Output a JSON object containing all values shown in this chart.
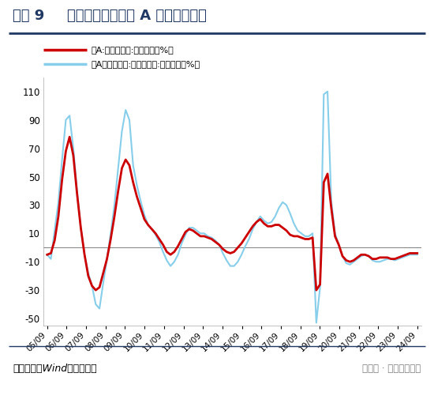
{
  "title_prefix": "图表 9",
  "title_main": "经历三年下行，全 A 业绩或已触底",
  "source_text": "资料来源：Wind，华创证券",
  "watermark_text": "公众号 · 姚佩策略探索",
  "legend1": "全A:归母净利润:累计同比（%）",
  "legend2": "全A（非金融）:归母净利润:累计同比（%）",
  "ylim": [
    -55,
    120
  ],
  "yticks": [
    -50,
    -30,
    -10,
    10,
    30,
    50,
    70,
    90,
    110
  ],
  "bg_color": "#FFFFFF",
  "line1_color": "#CC0000",
  "line2_color": "#87CEEB",
  "title_color": "#1F3864",
  "separator_color": "#1F3864",
  "x_labels": [
    "05/09",
    "06/09",
    "07/09",
    "08/09",
    "09/09",
    "10/09",
    "11/09",
    "12/09",
    "13/09",
    "14/09",
    "15/09",
    "16/09",
    "17/09",
    "18/09",
    "19/09",
    "20/09",
    "21/09",
    "22/09",
    "23/09",
    "24/09"
  ],
  "series1_y": [
    -5,
    -4,
    5,
    22,
    48,
    68,
    78,
    65,
    38,
    14,
    -5,
    -20,
    -27,
    -30,
    -28,
    -18,
    -8,
    6,
    22,
    40,
    56,
    62,
    58,
    46,
    36,
    28,
    20,
    16,
    13,
    10,
    6,
    2,
    -3,
    -5,
    -3,
    1,
    6,
    11,
    13,
    12,
    10,
    8,
    8,
    7,
    6,
    4,
    2,
    -1,
    -3,
    -4,
    -3,
    0,
    3,
    7,
    11,
    15,
    18,
    20,
    17,
    15,
    15,
    16,
    16,
    14,
    12,
    9,
    8,
    8,
    7,
    6,
    6,
    7,
    -30,
    -26,
    46,
    52,
    28,
    8,
    2,
    -6,
    -9,
    -10,
    -9,
    -7,
    -5,
    -5,
    -6,
    -8,
    -8,
    -7,
    -7,
    -7,
    -8,
    -8,
    -7,
    -6,
    -5,
    -4,
    -4,
    -4
  ],
  "series2_y": [
    -5,
    -8,
    12,
    32,
    62,
    90,
    93,
    70,
    40,
    14,
    -5,
    -18,
    -27,
    -40,
    -43,
    -25,
    -8,
    10,
    30,
    56,
    82,
    97,
    90,
    58,
    44,
    33,
    23,
    16,
    13,
    9,
    4,
    -3,
    -9,
    -13,
    -10,
    -5,
    3,
    9,
    14,
    14,
    12,
    10,
    10,
    8,
    7,
    5,
    2,
    -4,
    -9,
    -13,
    -13,
    -10,
    -5,
    1,
    6,
    13,
    18,
    22,
    19,
    17,
    18,
    22,
    28,
    32,
    30,
    24,
    17,
    12,
    10,
    8,
    8,
    10,
    -53,
    -28,
    108,
    110,
    33,
    10,
    2,
    -6,
    -11,
    -12,
    -10,
    -8,
    -6,
    -5,
    -6,
    -9,
    -10,
    -10,
    -9,
    -8,
    -8,
    -9,
    -8,
    -7,
    -6,
    -5,
    -5,
    -5
  ]
}
